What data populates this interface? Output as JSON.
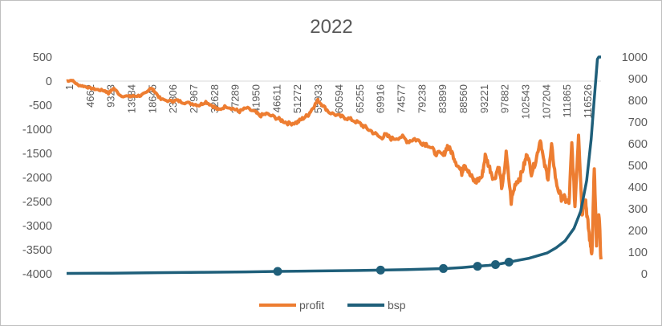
{
  "chart_data": {
    "type": "line",
    "title": "2022",
    "xlabel": "",
    "ylabel": "",
    "x_tick_labels": [
      "1",
      "4662",
      "9323",
      "13984",
      "18645",
      "23306",
      "27967",
      "32628",
      "37289",
      "41950",
      "46611",
      "51272",
      "55933",
      "60594",
      "65255",
      "69916",
      "74577",
      "79238",
      "83899",
      "88560",
      "93221",
      "97882",
      "102543",
      "107204",
      "111865",
      "116526"
    ],
    "x_range": [
      1,
      119000
    ],
    "y_left": {
      "min": -4000,
      "max": 500,
      "ticks": [
        500,
        0,
        -500,
        -1000,
        -1500,
        -2000,
        -2500,
        -3000,
        -3500,
        -4000
      ]
    },
    "y_right": {
      "min": 0,
      "max": 1000,
      "ticks": [
        1000,
        900,
        800,
        700,
        600,
        500,
        400,
        300,
        200,
        100,
        0
      ]
    },
    "grid": false,
    "legend_position": "bottom",
    "series": [
      {
        "name": "profit",
        "axis": "left",
        "color": "#ED7D31",
        "x": [
          1,
          1200,
          2500,
          4000,
          5500,
          7000,
          8500,
          9323,
          10500,
          12000,
          13984,
          15000,
          16500,
          17800,
          18645,
          19500,
          21000,
          23306,
          24500,
          26000,
          27967,
          29500,
          31000,
          32628,
          33800,
          35500,
          37289,
          38500,
          40000,
          41950,
          43000,
          44500,
          46611,
          48000,
          49500,
          51272,
          52500,
          53800,
          54800,
          55933,
          57000,
          58500,
          60594,
          62000,
          63500,
          65255,
          66500,
          68200,
          69916,
          71000,
          72500,
          74577,
          76000,
          77500,
          79238,
          80500,
          82000,
          83899,
          84800,
          85800,
          86800,
          88000,
          88560,
          89800,
          91000,
          92500,
          93221,
          94200,
          95200,
          96200,
          97000,
          97882,
          99000,
          100000,
          101000,
          102000,
          102543,
          103500,
          104500,
          105500,
          106300,
          107204,
          108000,
          109000,
          110000,
          111000,
          111865,
          112500,
          113200,
          114000,
          114800,
          115500,
          116000,
          116526,
          117000,
          117500,
          118000,
          118500,
          119000
        ],
        "y": [
          0,
          20,
          -80,
          -110,
          -150,
          -180,
          -200,
          -250,
          -150,
          -300,
          -320,
          -310,
          -300,
          -240,
          -140,
          -200,
          -380,
          -420,
          -400,
          -440,
          -470,
          -500,
          -430,
          -520,
          -600,
          -520,
          -580,
          -630,
          -560,
          -640,
          -720,
          -680,
          -760,
          -820,
          -880,
          -860,
          -780,
          -700,
          -560,
          -400,
          -500,
          -650,
          -720,
          -760,
          -800,
          -880,
          -960,
          -1060,
          -1180,
          -1120,
          -1200,
          -1150,
          -1250,
          -1200,
          -1280,
          -1320,
          -1480,
          -1550,
          -1350,
          -1480,
          -1700,
          -1900,
          -1700,
          -1950,
          -2100,
          -1980,
          -1550,
          -1800,
          -2050,
          -1750,
          -2250,
          -1500,
          -2500,
          -2100,
          -2000,
          -1700,
          -1500,
          -1900,
          -1650,
          -1200,
          -1700,
          -2000,
          -1350,
          -2100,
          -2400,
          -2450,
          -2550,
          -1300,
          -2600,
          -1100,
          -2750,
          -2400,
          -2900,
          -3300,
          -3550,
          -1800,
          -3400,
          -2700,
          -3700
        ]
      },
      {
        "name": "bsp",
        "axis": "right",
        "color": "#1F5F7A",
        "x": [
          1,
          10000,
          20000,
          30000,
          40000,
          47000,
          55000,
          65000,
          70000,
          75000,
          80000,
          85000,
          88000,
          91000,
          94000,
          96000,
          98000,
          99500,
          101000,
          103000,
          105000,
          107000,
          109000,
          111000,
          113000,
          114500,
          115800,
          116800,
          117400,
          117900,
          118200,
          118500,
          119000
        ],
        "y": [
          2,
          3,
          5,
          7,
          9,
          11,
          13,
          15,
          17,
          19,
          22,
          25,
          29,
          34,
          39,
          44,
          52,
          58,
          64,
          72,
          84,
          96,
          120,
          152,
          210,
          290,
          430,
          620,
          780,
          910,
          990,
          1000,
          1000
        ],
        "markers_x": [
          47000,
          69916,
          83899,
          91500,
          95500,
          98500
        ]
      }
    ]
  }
}
